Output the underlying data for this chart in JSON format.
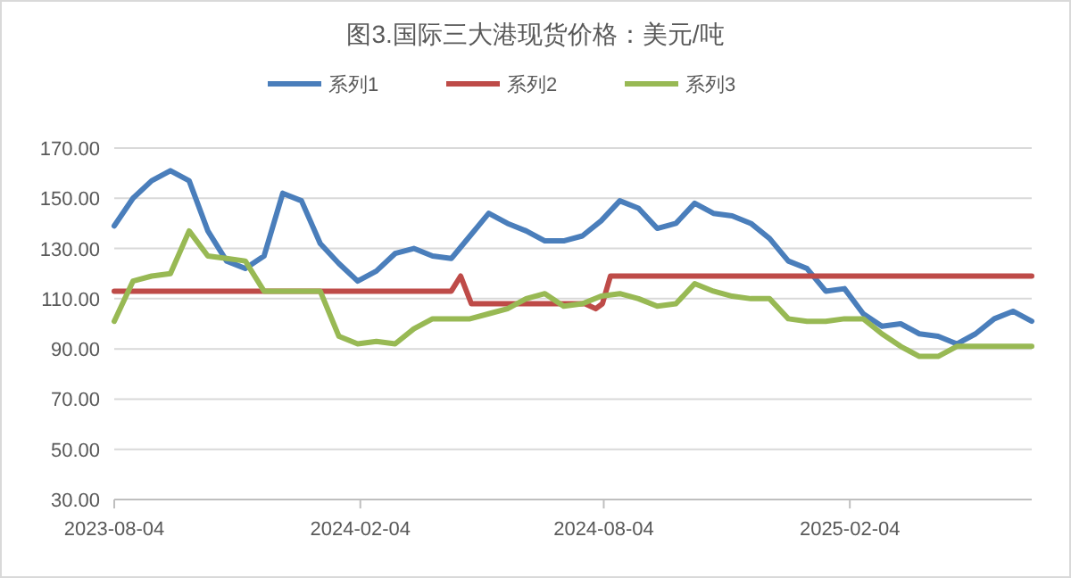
{
  "chart_data": {
    "type": "line",
    "title": "图3.国际三大港现货价格：美元/吨",
    "x": [
      "2023-08-04",
      "2023-08-18",
      "2023-09-01",
      "2023-09-15",
      "2023-09-29",
      "2023-10-13",
      "2023-10-27",
      "2023-11-10",
      "2023-11-24",
      "2023-12-08",
      "2023-12-22",
      "2024-01-05",
      "2024-01-19",
      "2024-02-02",
      "2024-02-16",
      "2024-03-01",
      "2024-03-15",
      "2024-03-29",
      "2024-04-12",
      "2024-04-26",
      "2024-05-10",
      "2024-05-24",
      "2024-06-07",
      "2024-06-21",
      "2024-07-05",
      "2024-07-19",
      "2024-08-02",
      "2024-08-16",
      "2024-08-30",
      "2024-09-13",
      "2024-09-27",
      "2024-10-11",
      "2024-10-25",
      "2024-11-08",
      "2024-11-22",
      "2024-12-06",
      "2024-12-20",
      "2025-01-03",
      "2025-01-17",
      "2025-01-31",
      "2025-02-14",
      "2025-02-28",
      "2025-03-14",
      "2025-03-28",
      "2025-04-11",
      "2025-04-25",
      "2025-05-09",
      "2025-05-23",
      "2025-06-06",
      "2025-06-20"
    ],
    "series": [
      {
        "name": "系列1",
        "color": "#4a7ebb",
        "values": [
          139,
          150,
          157,
          161,
          157,
          137,
          125,
          122,
          127,
          152,
          149,
          132,
          124,
          117,
          121,
          128,
          130,
          127,
          126,
          135,
          144,
          140,
          137,
          133,
          133,
          135,
          141,
          149,
          146,
          138,
          140,
          148,
          144,
          143,
          140,
          134,
          125,
          122,
          113,
          114,
          104,
          99,
          100,
          96,
          95,
          92,
          96,
          102,
          105,
          101
        ]
      },
      {
        "name": "系列2",
        "color": "#be4b48",
        "x": [
          "2023-08-04",
          "2024-04-12",
          "2024-04-19",
          "2024-04-27",
          "2024-07-21",
          "2024-07-29",
          "2024-08-03",
          "2024-08-09",
          "2025-06-20"
        ],
        "values": [
          113,
          113,
          119,
          108,
          108,
          106,
          108,
          119,
          119
        ]
      },
      {
        "name": "系列3",
        "color": "#98b954",
        "values": [
          101,
          117,
          119,
          120,
          137,
          127,
          126,
          125,
          113,
          113,
          113,
          113,
          95,
          92,
          93,
          92,
          98,
          102,
          102,
          102,
          104,
          106,
          110,
          112,
          107,
          108,
          111,
          112,
          110,
          107,
          108,
          116,
          113,
          111,
          110,
          110,
          102,
          101,
          101,
          102,
          102,
          96,
          91,
          87,
          87,
          91,
          91,
          91,
          91,
          91
        ]
      }
    ],
    "xlim": [
      "2023-08-04",
      "2025-06-20"
    ],
    "xticks": [
      "2023-08-04",
      "2024-02-04",
      "2024-08-04",
      "2025-02-04"
    ],
    "ylim": [
      30,
      170
    ],
    "yticks": [
      {
        "value": 30,
        "label": "30.00"
      },
      {
        "value": 50,
        "label": "50.00"
      },
      {
        "value": 70,
        "label": "70.00"
      },
      {
        "value": 90,
        "label": "90.00"
      },
      {
        "value": 110,
        "label": "110.00"
      },
      {
        "value": 130,
        "label": "130.00"
      },
      {
        "value": 150,
        "label": "150.00"
      },
      {
        "value": 170,
        "label": "170.00"
      }
    ],
    "grid": "y",
    "legend": "top",
    "marker": "none",
    "line_style": "solid"
  }
}
